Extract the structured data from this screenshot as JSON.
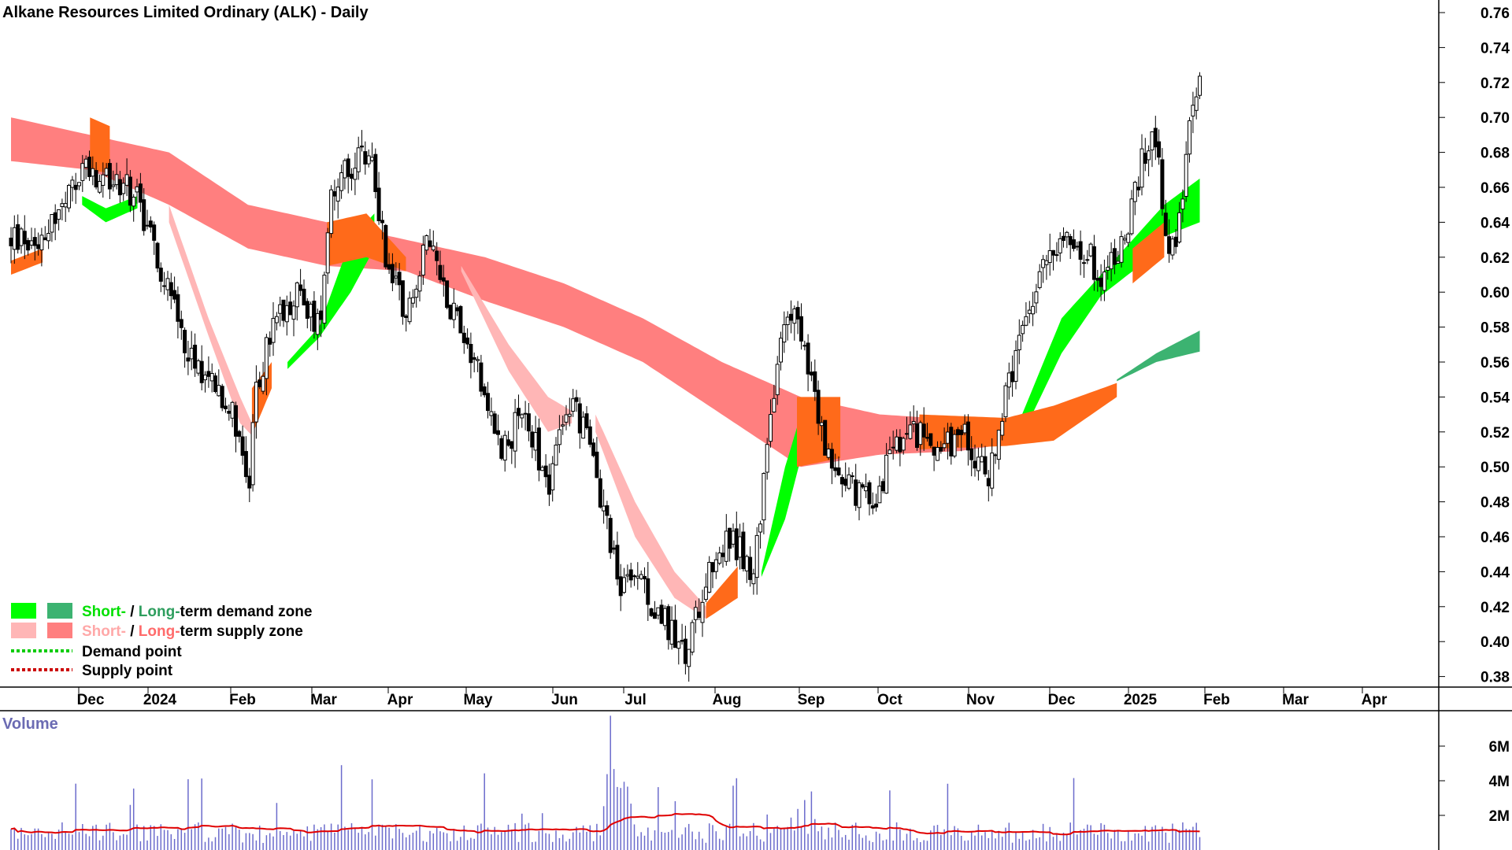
{
  "chart_data": {
    "type": "candlestick",
    "title": "Alkane Resources Limited Ordinary (ALK) - Daily",
    "price_axis": {
      "ticks": [
        "0.76",
        "0.74",
        "0.72",
        "0.70",
        "0.68",
        "0.66",
        "0.64",
        "0.62",
        "0.60",
        "0.58",
        "0.56",
        "0.54",
        "0.52",
        "0.50",
        "0.48",
        "0.46",
        "0.44",
        "0.42",
        "0.40",
        "0.38"
      ],
      "range": [
        0.37,
        0.77
      ]
    },
    "x_axis": {
      "labels": [
        "Dec",
        "2024",
        "Feb",
        "Mar",
        "Apr",
        "May",
        "Jun",
        "Jul",
        "Aug",
        "Sep",
        "Oct",
        "Nov",
        "Dec",
        "2025",
        "Feb",
        "Mar",
        "Apr"
      ]
    },
    "volume": {
      "title": "Volume",
      "ticks": [
        "6M",
        "4M",
        "2M"
      ],
      "range": [
        0,
        7.5
      ]
    },
    "legend": {
      "short": "Short-",
      "slash": " / ",
      "long": "Long-",
      "demand_zone": "term demand zone",
      "supply_zone": "term supply zone",
      "demand_point": "Demand point",
      "supply_point": "Supply point"
    },
    "colors": {
      "short_demand": "#00ff00",
      "long_demand": "#3cb371",
      "short_supply": "#ffb6b6",
      "long_supply": "#ff7f7f",
      "overlap": "#ff6a1a",
      "demand_point": "#00cc00",
      "supply_point": "#cc0000",
      "volume_bar": "#6b6bcc",
      "volume_avg": "#e00000",
      "volume_title": "#6b6bb3"
    },
    "price_path": [
      {
        "m": 0.0,
        "p": 0.63
      },
      {
        "m": 0.3,
        "p": 0.63
      },
      {
        "m": 0.7,
        "p": 0.65
      },
      {
        "m": 0.95,
        "p": 0.675
      },
      {
        "m": 1.05,
        "p": 0.66
      },
      {
        "m": 1.3,
        "p": 0.665
      },
      {
        "m": 1.6,
        "p": 0.655
      },
      {
        "m": 2.0,
        "p": 0.6
      },
      {
        "m": 2.3,
        "p": 0.56
      },
      {
        "m": 2.6,
        "p": 0.55
      },
      {
        "m": 2.9,
        "p": 0.52
      },
      {
        "m": 3.0,
        "p": 0.48
      },
      {
        "m": 3.1,
        "p": 0.54
      },
      {
        "m": 3.3,
        "p": 0.58
      },
      {
        "m": 3.6,
        "p": 0.6
      },
      {
        "m": 3.9,
        "p": 0.58
      },
      {
        "m": 4.05,
        "p": 0.66
      },
      {
        "m": 4.3,
        "p": 0.67
      },
      {
        "m": 4.55,
        "p": 0.68
      },
      {
        "m": 4.75,
        "p": 0.62
      },
      {
        "m": 5.0,
        "p": 0.59
      },
      {
        "m": 5.3,
        "p": 0.63
      },
      {
        "m": 5.5,
        "p": 0.6
      },
      {
        "m": 5.9,
        "p": 0.56
      },
      {
        "m": 6.2,
        "p": 0.51
      },
      {
        "m": 6.5,
        "p": 0.53
      },
      {
        "m": 6.8,
        "p": 0.49
      },
      {
        "m": 7.1,
        "p": 0.54
      },
      {
        "m": 7.4,
        "p": 0.5
      },
      {
        "m": 7.7,
        "p": 0.43
      },
      {
        "m": 8.0,
        "p": 0.43
      },
      {
        "m": 8.3,
        "p": 0.41
      },
      {
        "m": 8.55,
        "p": 0.39
      },
      {
        "m": 8.8,
        "p": 0.44
      },
      {
        "m": 9.1,
        "p": 0.46
      },
      {
        "m": 9.4,
        "p": 0.44
      },
      {
        "m": 9.7,
        "p": 0.56
      },
      {
        "m": 9.85,
        "p": 0.59
      },
      {
        "m": 10.05,
        "p": 0.57
      },
      {
        "m": 10.3,
        "p": 0.51
      },
      {
        "m": 10.6,
        "p": 0.49
      },
      {
        "m": 10.9,
        "p": 0.48
      },
      {
        "m": 11.2,
        "p": 0.51
      },
      {
        "m": 11.5,
        "p": 0.52
      },
      {
        "m": 11.8,
        "p": 0.51
      },
      {
        "m": 12.1,
        "p": 0.52
      },
      {
        "m": 12.35,
        "p": 0.49
      },
      {
        "m": 12.6,
        "p": 0.54
      },
      {
        "m": 12.9,
        "p": 0.59
      },
      {
        "m": 13.2,
        "p": 0.63
      },
      {
        "m": 13.5,
        "p": 0.63
      },
      {
        "m": 13.8,
        "p": 0.61
      },
      {
        "m": 14.1,
        "p": 0.63
      },
      {
        "m": 14.35,
        "p": 0.68
      },
      {
        "m": 14.5,
        "p": 0.69
      },
      {
        "m": 14.65,
        "p": 0.62
      },
      {
        "m": 14.78,
        "p": 0.64
      },
      {
        "m": 14.92,
        "p": 0.69
      },
      {
        "m": 15.05,
        "p": 0.73
      }
    ],
    "zones": {
      "long_supply": [
        {
          "m": 0.0,
          "top": 0.7,
          "bot": 0.675
        },
        {
          "m": 1.0,
          "top": 0.69,
          "bot": 0.67
        },
        {
          "m": 2.0,
          "top": 0.68,
          "bot": 0.65
        },
        {
          "m": 3.0,
          "top": 0.65,
          "bot": 0.625
        },
        {
          "m": 4.0,
          "top": 0.64,
          "bot": 0.615
        },
        {
          "m": 5.0,
          "top": 0.63,
          "bot": 0.612
        },
        {
          "m": 6.0,
          "top": 0.62,
          "bot": 0.595
        },
        {
          "m": 7.0,
          "top": 0.605,
          "bot": 0.58
        },
        {
          "m": 8.0,
          "top": 0.585,
          "bot": 0.56
        },
        {
          "m": 9.0,
          "top": 0.56,
          "bot": 0.53
        },
        {
          "m": 10.0,
          "top": 0.54,
          "bot": 0.5
        },
        {
          "m": 11.0,
          "top": 0.53,
          "bot": 0.507
        },
        {
          "m": 12.0,
          "top": 0.527,
          "bot": 0.509
        },
        {
          "m": 12.6,
          "top": 0.525,
          "bot": 0.513
        }
      ],
      "short_supply": [
        [
          {
            "m": 2.0,
            "top": 0.65,
            "bot": 0.64
          },
          {
            "m": 2.5,
            "top": 0.585,
            "bot": 0.575
          },
          {
            "m": 2.9,
            "top": 0.54,
            "bot": 0.525
          },
          {
            "m": 3.05,
            "top": 0.525,
            "bot": 0.518
          }
        ],
        [
          {
            "m": 5.7,
            "top": 0.615,
            "bot": 0.612
          },
          {
            "m": 6.3,
            "top": 0.57,
            "bot": 0.555
          },
          {
            "m": 6.8,
            "top": 0.54,
            "bot": 0.52
          },
          {
            "m": 7.1,
            "top": 0.532,
            "bot": 0.525
          }
        ],
        [
          {
            "m": 7.4,
            "top": 0.53,
            "bot": 0.52
          },
          {
            "m": 7.9,
            "top": 0.48,
            "bot": 0.46
          },
          {
            "m": 8.4,
            "top": 0.44,
            "bot": 0.425
          },
          {
            "m": 8.8,
            "top": 0.42,
            "bot": 0.413
          }
        ]
      ],
      "short_demand": [
        [
          {
            "m": 0.9,
            "top": 0.655,
            "bot": 0.65
          },
          {
            "m": 1.2,
            "top": 0.648,
            "bot": 0.64
          },
          {
            "m": 1.6,
            "top": 0.655,
            "bot": 0.648
          }
        ],
        [
          {
            "m": 3.5,
            "top": 0.56,
            "bot": 0.556
          },
          {
            "m": 3.9,
            "top": 0.58,
            "bot": 0.574
          },
          {
            "m": 4.3,
            "top": 0.63,
            "bot": 0.6
          },
          {
            "m": 4.6,
            "top": 0.645,
            "bot": 0.625
          }
        ],
        [
          {
            "m": 9.5,
            "top": 0.44,
            "bot": 0.437
          },
          {
            "m": 9.8,
            "top": 0.5,
            "bot": 0.47
          },
          {
            "m": 10.0,
            "top": 0.53,
            "bot": 0.505
          },
          {
            "m": 10.3,
            "top": 0.54,
            "bot": 0.53
          }
        ],
        [
          {
            "m": 12.8,
            "top": 0.53,
            "bot": 0.518
          },
          {
            "m": 13.3,
            "top": 0.585,
            "bot": 0.565
          },
          {
            "m": 13.8,
            "top": 0.61,
            "bot": 0.598
          },
          {
            "m": 14.2,
            "top": 0.63,
            "bot": 0.612
          },
          {
            "m": 14.6,
            "top": 0.65,
            "bot": 0.632
          },
          {
            "m": 15.05,
            "top": 0.665,
            "bot": 0.64
          }
        ]
      ],
      "long_demand": [
        [
          {
            "m": 14.0,
            "top": 0.55,
            "bot": 0.549
          },
          {
            "m": 14.5,
            "top": 0.565,
            "bot": 0.56
          },
          {
            "m": 15.05,
            "top": 0.578,
            "bot": 0.566
          }
        ]
      ],
      "overlap": [
        [
          {
            "m": 0.0,
            "top": 0.618,
            "bot": 0.61
          },
          {
            "m": 0.4,
            "top": 0.625,
            "bot": 0.617
          }
        ],
        [
          {
            "m": 1.0,
            "top": 0.7,
            "bot": 0.67
          },
          {
            "m": 1.25,
            "top": 0.695,
            "bot": 0.668
          }
        ],
        [
          {
            "m": 3.05,
            "top": 0.545,
            "bot": 0.518
          },
          {
            "m": 3.3,
            "top": 0.56,
            "bot": 0.545
          }
        ],
        [
          {
            "m": 4.0,
            "top": 0.64,
            "bot": 0.615
          },
          {
            "m": 4.5,
            "top": 0.645,
            "bot": 0.62
          },
          {
            "m": 5.0,
            "top": 0.62,
            "bot": 0.612
          }
        ],
        [
          {
            "m": 8.8,
            "top": 0.422,
            "bot": 0.413
          },
          {
            "m": 9.2,
            "top": 0.443,
            "bot": 0.425
          }
        ],
        [
          {
            "m": 9.95,
            "top": 0.54,
            "bot": 0.5
          },
          {
            "m": 10.5,
            "top": 0.54,
            "bot": 0.505
          }
        ],
        [
          {
            "m": 11.5,
            "top": 0.53,
            "bot": 0.51
          },
          {
            "m": 12.6,
            "top": 0.528,
            "bot": 0.512
          },
          {
            "m": 13.2,
            "top": 0.535,
            "bot": 0.515
          },
          {
            "m": 14.0,
            "top": 0.548,
            "bot": 0.54
          }
        ],
        [
          {
            "m": 14.2,
            "top": 0.625,
            "bot": 0.605
          },
          {
            "m": 14.6,
            "top": 0.64,
            "bot": 0.62
          }
        ]
      ]
    }
  }
}
